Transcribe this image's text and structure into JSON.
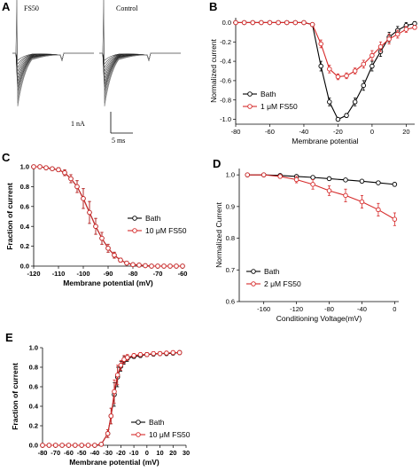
{
  "panels": {
    "A": {
      "label": "A",
      "left_title": "FS50",
      "right_title": "Control",
      "scale_current": "1 nA",
      "scale_time": "5 ms"
    },
    "B": {
      "label": "B"
    },
    "C": {
      "label": "C"
    },
    "D": {
      "label": "D"
    },
    "E": {
      "label": "E"
    }
  },
  "colors": {
    "bath": "#000000",
    "fs50": "#d62a2a"
  },
  "chart_data": [
    {
      "id": "B",
      "type": "line",
      "xlabel": "Membrane potential",
      "ylabel": "Normalized current",
      "xlim": [
        -80,
        25
      ],
      "ylim": [
        -1.05,
        0.05
      ],
      "xticks": [
        -80,
        -60,
        -40,
        -20,
        0,
        20
      ],
      "yticks": [
        0.0,
        -0.2,
        -0.4,
        -0.6,
        -0.8,
        -1.0
      ],
      "ytick_labels": [
        "0.0",
        "-0.2",
        "-0.4",
        "-0.6",
        "-0.8",
        "-1.0"
      ],
      "legend": "bottom-left",
      "x": [
        -80,
        -75,
        -70,
        -65,
        -60,
        -55,
        -50,
        -45,
        -40,
        -35,
        -30,
        -25,
        -20,
        -15,
        -10,
        -5,
        0,
        5,
        10,
        15,
        20,
        25
      ],
      "series": [
        {
          "name": "Bath",
          "color": "#000000",
          "values": [
            0,
            0,
            0,
            0,
            0,
            0,
            0,
            0,
            0,
            -0.02,
            -0.45,
            -0.82,
            -1.0,
            -0.96,
            -0.82,
            -0.65,
            -0.45,
            -0.3,
            -0.15,
            -0.08,
            -0.03,
            -0.01
          ],
          "err": [
            0,
            0,
            0,
            0,
            0,
            0,
            0,
            0,
            0,
            0.01,
            0.05,
            0.04,
            0.01,
            0.02,
            0.04,
            0.05,
            0.05,
            0.05,
            0.05,
            0.04,
            0.03,
            0.02
          ]
        },
        {
          "name": "1 μM FS50",
          "color": "#d62a2a",
          "values": [
            0,
            0,
            0,
            0,
            0,
            0,
            0,
            0,
            0,
            -0.02,
            -0.22,
            -0.48,
            -0.56,
            -0.55,
            -0.5,
            -0.43,
            -0.34,
            -0.25,
            -0.17,
            -0.12,
            -0.07,
            -0.05
          ],
          "err": [
            0,
            0,
            0,
            0,
            0,
            0,
            0,
            0,
            0,
            0.01,
            0.04,
            0.04,
            0.03,
            0.03,
            0.03,
            0.04,
            0.05,
            0.05,
            0.05,
            0.04,
            0.03,
            0.02
          ]
        }
      ]
    },
    {
      "id": "C",
      "type": "line",
      "xlabel": "Membrane potential (mV)",
      "ylabel": "Fraction of current",
      "xlim": [
        -120,
        -60
      ],
      "ylim": [
        0,
        1.0
      ],
      "xticks": [
        -120,
        -110,
        -100,
        -90,
        -80,
        -70,
        -60
      ],
      "yticks": [
        0.0,
        0.2,
        0.4,
        0.6,
        0.8,
        1.0
      ],
      "ytick_labels": [
        "0.0",
        "0.2",
        "0.4",
        "0.6",
        "0.8",
        "1.0"
      ],
      "legend": "right",
      "x": [
        -120,
        -117.5,
        -115,
        -112.5,
        -110,
        -107.5,
        -105,
        -102.5,
        -100,
        -97.5,
        -95,
        -92.5,
        -90,
        -87.5,
        -85,
        -82.5,
        -80,
        -77.5,
        -75,
        -72.5,
        -70,
        -67.5,
        -65,
        -62.5,
        -60
      ],
      "series": [
        {
          "name": "Bath",
          "color": "#000000",
          "values": [
            1.0,
            1.0,
            0.99,
            0.98,
            0.97,
            0.94,
            0.88,
            0.8,
            0.68,
            0.54,
            0.4,
            0.28,
            0.18,
            0.11,
            0.06,
            0.03,
            0.015,
            0.01,
            0.005,
            0,
            0,
            0,
            0,
            0,
            0
          ],
          "err": [
            0,
            0,
            0.01,
            0.01,
            0.02,
            0.03,
            0.04,
            0.06,
            0.1,
            0.11,
            0.08,
            0.06,
            0.04,
            0.03,
            0.02,
            0.01,
            0.01,
            0,
            0,
            0,
            0,
            0,
            0,
            0,
            0
          ]
        },
        {
          "name": "10 μM FS50",
          "color": "#d62a2a",
          "values": [
            1.0,
            1.0,
            0.99,
            0.98,
            0.97,
            0.94,
            0.88,
            0.8,
            0.68,
            0.54,
            0.4,
            0.28,
            0.18,
            0.11,
            0.06,
            0.03,
            0.015,
            0.01,
            0.005,
            0,
            0,
            0,
            0,
            0,
            0
          ],
          "err": [
            0,
            0,
            0.01,
            0.01,
            0.02,
            0.03,
            0.04,
            0.06,
            0.1,
            0.11,
            0.08,
            0.06,
            0.04,
            0.03,
            0.02,
            0.01,
            0.01,
            0,
            0,
            0,
            0,
            0,
            0,
            0,
            0
          ]
        }
      ]
    },
    {
      "id": "D",
      "type": "line",
      "xlabel": "Conditioning Voltage(mV)",
      "ylabel": "Normalized Current",
      "xlim": [
        -190,
        5
      ],
      "ylim": [
        0.6,
        1.02
      ],
      "xticks": [
        -160,
        -120,
        -80,
        -40,
        0
      ],
      "yticks": [
        0.6,
        0.7,
        0.8,
        0.9,
        1.0
      ],
      "ytick_labels": [
        "0.6",
        "0.7",
        "0.8",
        "0.9",
        "1.0"
      ],
      "legend": "bottom-left",
      "x": [
        -180,
        -160,
        -140,
        -120,
        -100,
        -80,
        -60,
        -40,
        -20,
        0
      ],
      "series": [
        {
          "name": "Bath",
          "color": "#000000",
          "values": [
            1.0,
            1.0,
            0.998,
            0.995,
            0.992,
            0.988,
            0.984,
            0.98,
            0.975,
            0.97
          ],
          "err": [
            0,
            0,
            0,
            0.002,
            0.003,
            0.003,
            0.004,
            0.004,
            0.005,
            0.006
          ]
        },
        {
          "name": "2 μM FS50",
          "color": "#d62a2a",
          "values": [
            1.0,
            1.0,
            0.995,
            0.985,
            0.97,
            0.95,
            0.935,
            0.915,
            0.89,
            0.86
          ],
          "err": [
            0,
            0,
            0.005,
            0.01,
            0.015,
            0.015,
            0.02,
            0.02,
            0.02,
            0.02
          ]
        }
      ]
    },
    {
      "id": "E",
      "type": "line",
      "xlabel": "Membrane potential (mV)",
      "ylabel": "Fraction of current",
      "xlim": [
        -80,
        30
      ],
      "ylim": [
        0,
        1.0
      ],
      "xticks": [
        -80,
        -70,
        -60,
        -50,
        -40,
        -30,
        -20,
        -10,
        0,
        10,
        20,
        30
      ],
      "yticks": [
        0.0,
        0.2,
        0.4,
        0.6,
        0.8,
        1.0
      ],
      "ytick_labels": [
        "0.0",
        "0.2",
        "0.4",
        "0.6",
        "0.8",
        "1.0"
      ],
      "legend": "bottom-right",
      "x": [
        -80,
        -75,
        -70,
        -65,
        -60,
        -55,
        -50,
        -45,
        -40,
        -35,
        -30,
        -27.5,
        -25,
        -22.5,
        -20,
        -17.5,
        -15,
        -10,
        -5,
        0,
        5,
        10,
        15,
        20,
        25
      ],
      "series": [
        {
          "name": "Bath",
          "color": "#000000",
          "values": [
            0,
            0,
            0,
            0,
            0,
            0,
            0,
            0,
            0,
            0.01,
            0.12,
            0.3,
            0.52,
            0.7,
            0.81,
            0.87,
            0.89,
            0.91,
            0.92,
            0.93,
            0.935,
            0.94,
            0.94,
            0.945,
            0.95
          ],
          "err": [
            0,
            0,
            0,
            0,
            0,
            0,
            0,
            0,
            0,
            0.01,
            0.04,
            0.08,
            0.12,
            0.1,
            0.05,
            0.04,
            0.03,
            0.02,
            0.02,
            0.02,
            0.02,
            0.02,
            0.02,
            0.02,
            0.02
          ]
        },
        {
          "name": "10 μM FS50",
          "color": "#d62a2a",
          "values": [
            0,
            0,
            0,
            0,
            0,
            0,
            0,
            0,
            0,
            0.01,
            0.12,
            0.3,
            0.55,
            0.72,
            0.82,
            0.88,
            0.9,
            0.92,
            0.93,
            0.93,
            0.94,
            0.94,
            0.945,
            0.95,
            0.95
          ],
          "err": [
            0,
            0,
            0,
            0,
            0,
            0,
            0,
            0,
            0,
            0.01,
            0.04,
            0.08,
            0.12,
            0.1,
            0.05,
            0.04,
            0.03,
            0.02,
            0.02,
            0.02,
            0.02,
            0.02,
            0.02,
            0.02,
            0.02
          ]
        }
      ]
    }
  ]
}
